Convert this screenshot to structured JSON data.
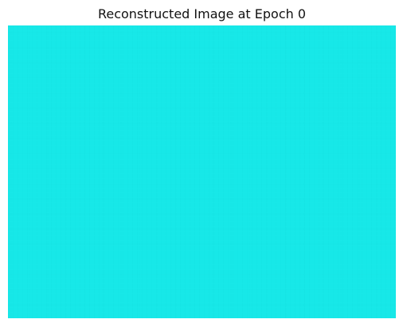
{
  "figure": {
    "title": "Reconstructed Image at Epoch 0",
    "image": {
      "base_color": "#18E8E8",
      "grain_color_1": "#12DCDD",
      "grain_color_2": "#1CF0F0",
      "grain_color_3": "#14D8DA"
    }
  }
}
